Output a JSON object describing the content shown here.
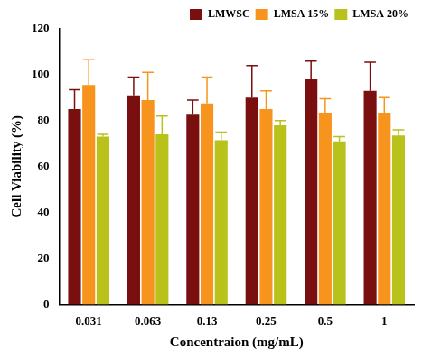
{
  "chart_data": {
    "type": "bar",
    "x_label": "Concentraion (mg/mL)",
    "y_label": "Cell Viability (%)",
    "categories": [
      "0.031",
      "0.063",
      "0.13",
      "0.25",
      "0.5",
      "1"
    ],
    "series": [
      {
        "name": "LMWSC",
        "color": "#7a0f0f",
        "values": [
          85,
          91,
          83,
          90,
          98,
          93
        ],
        "errors": [
          8.5,
          8,
          6,
          14,
          8,
          12.5
        ]
      },
      {
        "name": "LMSA 15%",
        "color": "#f7941d",
        "values": [
          95.5,
          89,
          87.5,
          85,
          83.5,
          83.5
        ],
        "errors": [
          11,
          12,
          11.5,
          8,
          6,
          6.5
        ]
      },
      {
        "name": "LMSA 20%",
        "color": "#b8c21a",
        "values": [
          73,
          74,
          71.5,
          78,
          71,
          73.5
        ],
        "errors": [
          1,
          8,
          3.5,
          2,
          2,
          2.5
        ]
      }
    ],
    "ylim": [
      0,
      120
    ],
    "yticks": [
      0,
      20,
      40,
      60,
      80,
      100,
      120
    ],
    "grid": false,
    "legend": "top-right"
  }
}
